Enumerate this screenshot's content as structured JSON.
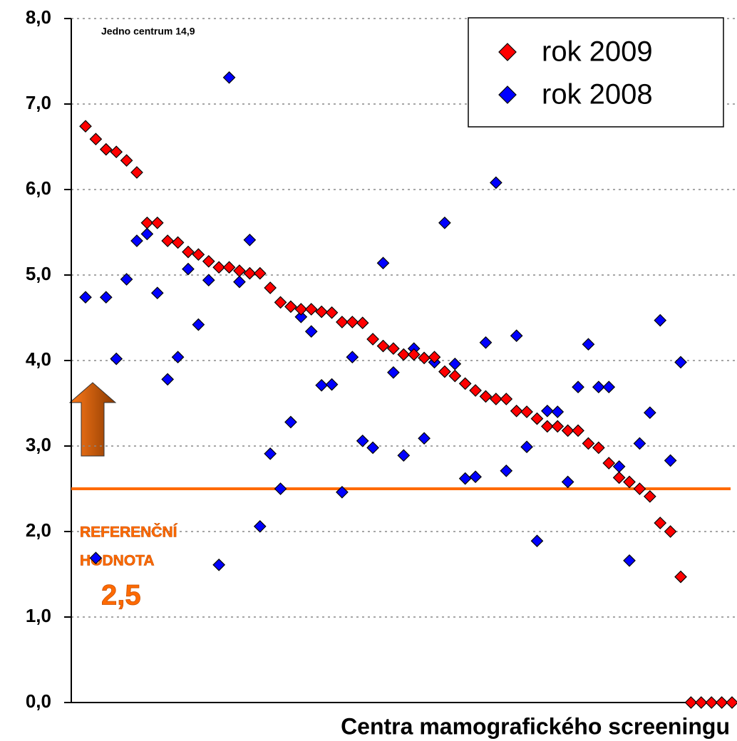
{
  "chart_data": {
    "type": "scatter",
    "x_label": "Centra mamografického screeningu",
    "annotation": "Jedno centrum 14,9",
    "categories": [
      null,
      null,
      null,
      null,
      null,
      null,
      null,
      null,
      null,
      null,
      null,
      null,
      null,
      null,
      null,
      null,
      null,
      null,
      null,
      null,
      null,
      null,
      null,
      null,
      null,
      null,
      null,
      null,
      null,
      null,
      null,
      null,
      null,
      null,
      null,
      null,
      null,
      null,
      null,
      null,
      null,
      null,
      null,
      null,
      null,
      null,
      null,
      null,
      null,
      null,
      null,
      null,
      null,
      null,
      null,
      null,
      null,
      null,
      null,
      null,
      null,
      null,
      null,
      null
    ],
    "series": [
      {
        "name": "rok 2009",
        "color": "#ff0000",
        "values": [
          6.74,
          6.59,
          6.47,
          6.44,
          6.34,
          6.2,
          5.61,
          5.61,
          5.4,
          5.38,
          5.27,
          5.24,
          5.16,
          5.09,
          5.09,
          5.05,
          5.02,
          5.02,
          4.85,
          4.68,
          4.63,
          4.6,
          4.6,
          4.57,
          4.56,
          4.45,
          4.45,
          4.44,
          4.25,
          4.17,
          4.14,
          4.07,
          4.07,
          4.03,
          4.04,
          3.87,
          3.82,
          3.73,
          3.65,
          3.58,
          3.55,
          3.55,
          3.41,
          3.4,
          3.32,
          3.23,
          3.23,
          3.18,
          3.18,
          3.03,
          2.98,
          2.8,
          2.63,
          2.58,
          2.5,
          2.41,
          2.1,
          2.0,
          1.47,
          0,
          0,
          0,
          0,
          0
        ]
      },
      {
        "name": "rok 2008",
        "color": "#0000ff",
        "values": [
          4.74,
          1.69,
          4.74,
          4.02,
          4.95,
          5.4,
          5.48,
          4.79,
          3.78,
          4.04,
          5.07,
          4.42,
          4.94,
          1.61,
          7.31,
          4.92,
          5.41,
          2.06,
          2.91,
          2.5,
          3.28,
          4.51,
          4.34,
          3.71,
          3.72,
          2.46,
          4.04,
          3.06,
          2.98,
          5.14,
          3.86,
          2.89,
          4.14,
          3.09,
          3.98,
          5.61,
          3.96,
          2.62,
          2.64,
          4.21,
          6.08,
          2.71,
          4.29,
          2.99,
          1.89,
          3.41,
          3.4,
          2.58,
          3.69,
          4.19,
          3.69,
          3.69,
          2.76,
          1.66,
          3.03,
          3.39,
          4.47,
          2.83,
          3.98,
          null,
          null,
          null,
          null,
          null
        ]
      }
    ],
    "ylim": [
      0,
      8
    ],
    "yticks": [
      {
        "value": 0,
        "label": "0,0"
      },
      {
        "value": 1,
        "label": "1,0"
      },
      {
        "value": 2,
        "label": "2,0"
      },
      {
        "value": 3,
        "label": "3,0"
      },
      {
        "value": 4,
        "label": "4,0"
      },
      {
        "value": 5,
        "label": "5,0"
      },
      {
        "value": 6,
        "label": "6,0"
      },
      {
        "value": 7,
        "label": "7,0"
      },
      {
        "value": 8,
        "label": "8,0"
      }
    ],
    "grid": true,
    "legend": "top-right",
    "reference": {
      "value": 2.5,
      "label": "2,5",
      "text": [
        "REFERENČNÍ",
        "HODNOTA"
      ],
      "color": "#ff6a00"
    }
  }
}
